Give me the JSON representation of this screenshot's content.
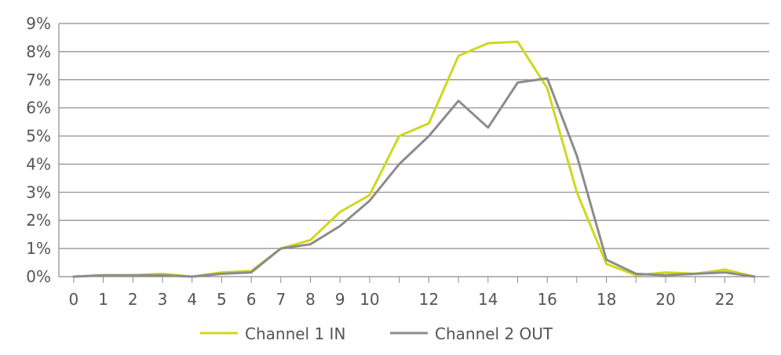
{
  "chart_data": {
    "type": "line",
    "title": "",
    "xlabel": "",
    "ylabel": "",
    "x": [
      0,
      1,
      2,
      3,
      4,
      5,
      6,
      7,
      8,
      9,
      10,
      11,
      12,
      13,
      14,
      15,
      16,
      17,
      18,
      19,
      20,
      21,
      22,
      23
    ],
    "x_tick_labels": [
      "0",
      "1",
      "2",
      "3",
      "4",
      "5",
      "6",
      "7",
      "8",
      "9",
      "10",
      "12",
      "14",
      "16",
      "18",
      "20",
      "22"
    ],
    "x_tick_values": [
      0,
      1,
      2,
      3,
      4,
      5,
      6,
      7,
      8,
      9,
      10,
      12,
      14,
      16,
      18,
      20,
      22
    ],
    "xlim": [
      -0.5,
      23.5
    ],
    "y_tick_labels": [
      "0%",
      "1%",
      "2%",
      "3%",
      "4%",
      "5%",
      "6%",
      "7%",
      "8%",
      "9%"
    ],
    "y_tick_values": [
      0,
      1,
      2,
      3,
      4,
      5,
      6,
      7,
      8,
      9
    ],
    "ylim": [
      0,
      9
    ],
    "grid": "horizontal",
    "legend_position": "bottom",
    "series": [
      {
        "name": "Channel 1 IN",
        "color": "#cfd81c",
        "values": [
          0,
          0.05,
          0.05,
          0.1,
          0,
          0.15,
          0.2,
          1.0,
          1.3,
          2.3,
          2.9,
          5.0,
          5.45,
          7.85,
          8.3,
          8.35,
          6.7,
          3.0,
          0.45,
          0.05,
          0.15,
          0.1,
          0.25,
          0
        ]
      },
      {
        "name": "Channel 2 OUT",
        "color": "#8c8c8c",
        "values": [
          0,
          0.05,
          0.05,
          0.05,
          0,
          0.1,
          0.15,
          1.0,
          1.15,
          1.8,
          2.7,
          4.0,
          5.0,
          6.25,
          5.3,
          6.9,
          7.05,
          4.3,
          0.6,
          0.1,
          0.05,
          0.1,
          0.15,
          0
        ]
      }
    ]
  }
}
